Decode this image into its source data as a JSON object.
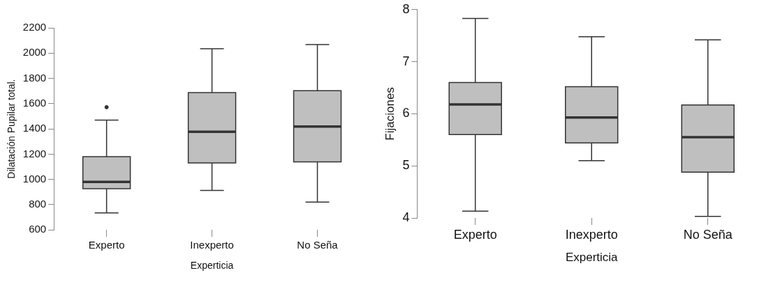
{
  "chart_data": [
    {
      "type": "box",
      "xlabel": "Experticia",
      "ylabel": "Dilatación Pupilar total.",
      "categories": [
        "Experto",
        "Inexperto",
        "No Seña"
      ],
      "ylim": [
        600,
        2200
      ],
      "yticks": [
        600,
        800,
        1000,
        1200,
        1400,
        1600,
        1800,
        2000,
        2200
      ],
      "grid": false,
      "legend": false,
      "series": [
        {
          "color": "#bfbfbf",
          "boxes": [
            {
              "low": 735,
              "q1": 926,
              "median": 980,
              "q3": 1180,
              "high": 1469,
              "outliers": [
                1572
              ]
            },
            {
              "low": 912,
              "q1": 1130,
              "median": 1377,
              "q3": 1687,
              "high": 2034
            },
            {
              "low": 820,
              "q1": 1138,
              "median": 1419,
              "q3": 1703,
              "high": 2067
            }
          ]
        }
      ]
    },
    {
      "type": "box",
      "xlabel": "Experticia",
      "ylabel": "Fijaciones",
      "categories": [
        "Experto",
        "Inexperto",
        "No Seña"
      ],
      "ylim": [
        4,
        8
      ],
      "yticks": [
        4,
        5,
        6,
        7,
        8
      ],
      "grid": false,
      "legend": false,
      "series": [
        {
          "color": "#bfbfbf",
          "boxes": [
            {
              "low": 4.13,
              "q1": 5.6,
              "median": 6.18,
              "q3": 6.6,
              "high": 7.83
            },
            {
              "low": 5.1,
              "q1": 5.44,
              "median": 5.93,
              "q3": 6.52,
              "high": 7.48
            },
            {
              "low": 4.03,
              "q1": 4.88,
              "median": 5.55,
              "q3": 6.17,
              "high": 7.42
            }
          ]
        }
      ]
    }
  ]
}
